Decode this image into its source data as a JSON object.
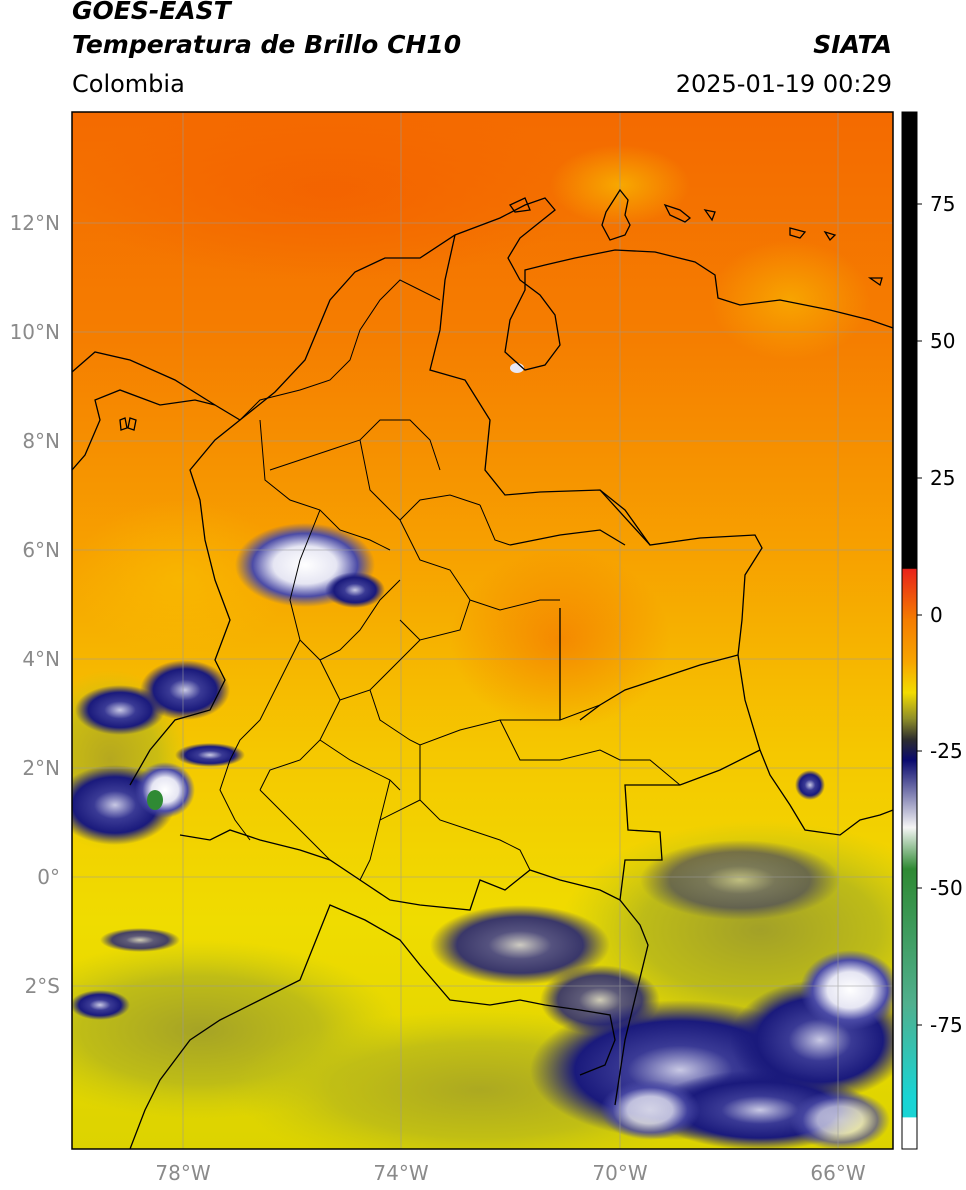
{
  "header": {
    "satellite": "GOES-EAST",
    "product": "Temperatura de Brillo CH10",
    "region": "Colombia",
    "agency": "SIATA",
    "datetime": "2025-01-19 00:29"
  },
  "map": {
    "lat_ticks": [
      "12°N",
      "10°N",
      "8°N",
      "6°N",
      "4°N",
      "2°N",
      "0°",
      "2°S"
    ],
    "lon_ticks": [
      "78°W",
      "74°W",
      "70°W",
      "66°W"
    ],
    "features": [
      "coastlines",
      "department-borders",
      "country-borders",
      "cloud-tops"
    ]
  },
  "colorbar": {
    "ticks": [
      "75",
      "50",
      "25",
      "0",
      "-25",
      "-50",
      "-75"
    ],
    "colors": {
      "black": "#000000",
      "red": "#e8231a",
      "orange": "#f57d00",
      "yellow": "#f2dc00",
      "olive": "#8f8f28",
      "navy": "#0a0a6e",
      "white": "#f5f5f5",
      "green": "#2f8a34",
      "cyan": "#19d4d4"
    }
  }
}
